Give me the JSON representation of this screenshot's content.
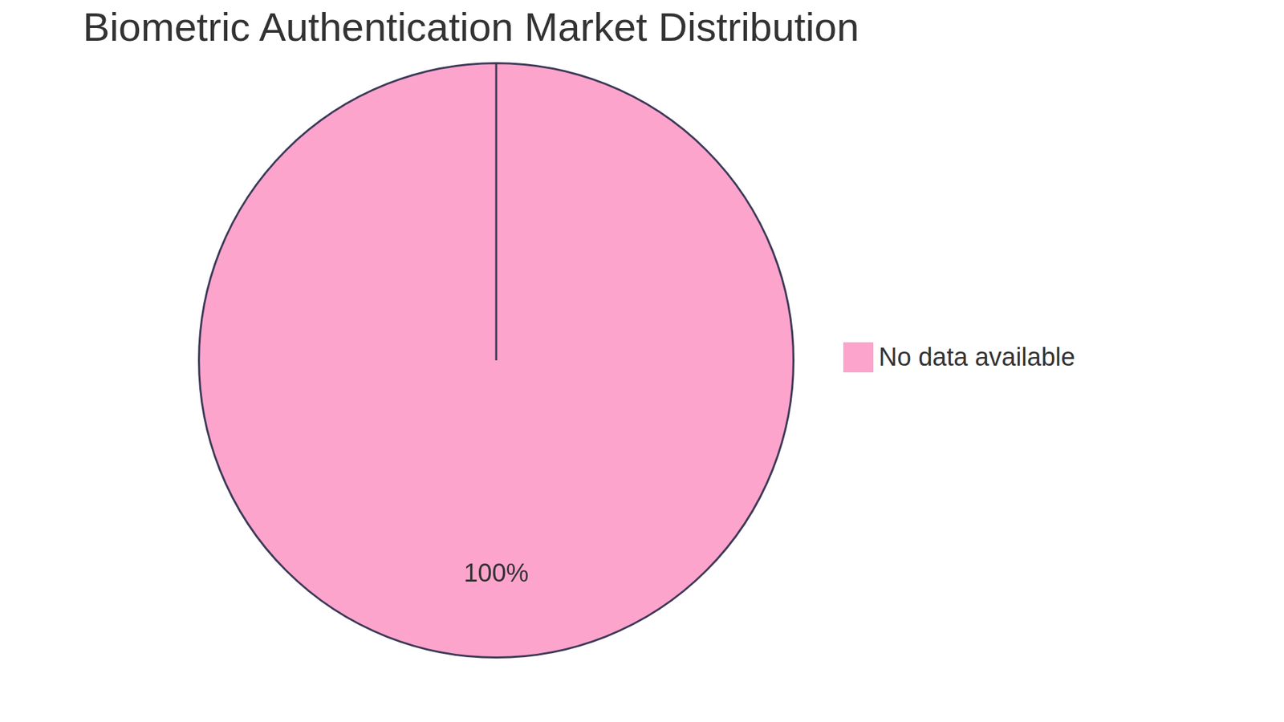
{
  "chart_data": {
    "type": "pie",
    "title": "Biometric Authentication Market Distribution",
    "categories": [
      "No data available"
    ],
    "values": [
      100
    ],
    "value_labels": [
      "100%"
    ],
    "colors": [
      "#fda4cc"
    ],
    "legend": "right",
    "data_labels": true
  }
}
